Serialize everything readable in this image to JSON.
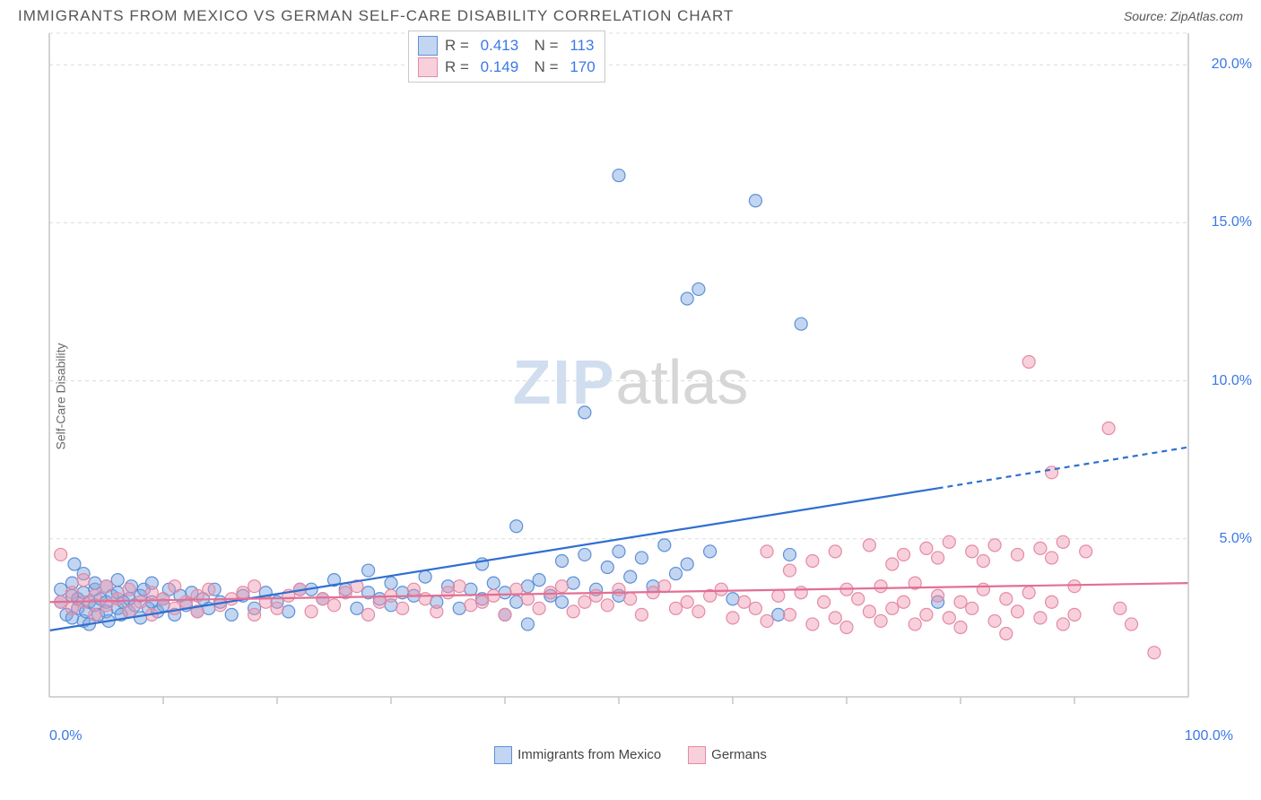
{
  "header": {
    "title": "IMMIGRANTS FROM MEXICO VS GERMAN SELF-CARE DISABILITY CORRELATION CHART",
    "source_prefix": "Source: ",
    "source_name": "ZipAtlas.com"
  },
  "y_axis_label": "Self-Care Disability",
  "watermark": {
    "left": "ZIP",
    "right": "atlas"
  },
  "chart": {
    "type": "scatter",
    "xlim": [
      0,
      100
    ],
    "ylim": [
      0,
      21
    ],
    "y_ticks": [
      5.0,
      10.0,
      15.0,
      20.0
    ],
    "y_tick_labels": [
      "5.0%",
      "10.0%",
      "15.0%",
      "20.0%"
    ],
    "x_minor_ticks": [
      10,
      20,
      30,
      40,
      50,
      60,
      70,
      80,
      90
    ],
    "x_end_labels": [
      "0.0%",
      "100.0%"
    ],
    "grid_color": "#dcdcdc",
    "axis_color": "#c5c5c5",
    "background_color": "#ffffff",
    "marker_radius": 7,
    "series": [
      {
        "key": "mexico",
        "label": "Immigrants from Mexico",
        "fill": "rgba(120,165,225,0.45)",
        "stroke": "#5e8fd6",
        "line_color": "#2f6fd0",
        "R": "0.413",
        "N": "113",
        "trend": {
          "x1": 0,
          "y1": 2.1,
          "x2": 78,
          "y2": 6.6,
          "ext_x2": 100,
          "ext_y2": 7.9,
          "dash_from": 78
        },
        "points": [
          [
            1,
            3.0
          ],
          [
            1,
            3.4
          ],
          [
            1.5,
            2.6
          ],
          [
            2,
            3.2
          ],
          [
            2,
            2.5
          ],
          [
            2,
            3.6
          ],
          [
            2.2,
            4.2
          ],
          [
            2.5,
            2.8
          ],
          [
            2.5,
            3.1
          ],
          [
            3,
            2.4
          ],
          [
            3,
            3.3
          ],
          [
            3,
            3.9
          ],
          [
            3.2,
            2.7
          ],
          [
            3.5,
            3.0
          ],
          [
            3.5,
            2.3
          ],
          [
            4,
            3.4
          ],
          [
            4,
            2.9
          ],
          [
            4,
            3.6
          ],
          [
            4.3,
            2.6
          ],
          [
            4.5,
            3.1
          ],
          [
            5,
            3.0
          ],
          [
            5,
            2.7
          ],
          [
            5,
            3.5
          ],
          [
            5.2,
            2.4
          ],
          [
            5.5,
            3.2
          ],
          [
            6,
            2.8
          ],
          [
            6,
            3.3
          ],
          [
            6,
            3.7
          ],
          [
            6.3,
            2.6
          ],
          [
            6.5,
            3.0
          ],
          [
            7,
            3.1
          ],
          [
            7,
            2.7
          ],
          [
            7.2,
            3.5
          ],
          [
            7.5,
            2.9
          ],
          [
            8,
            3.2
          ],
          [
            8,
            2.5
          ],
          [
            8.3,
            3.4
          ],
          [
            8.7,
            2.8
          ],
          [
            9,
            3.0
          ],
          [
            9,
            3.6
          ],
          [
            9.5,
            2.7
          ],
          [
            10,
            3.1
          ],
          [
            10,
            2.9
          ],
          [
            10.5,
            3.4
          ],
          [
            11,
            2.6
          ],
          [
            11.5,
            3.2
          ],
          [
            12,
            2.9
          ],
          [
            12.5,
            3.3
          ],
          [
            13,
            2.7
          ],
          [
            13.5,
            3.1
          ],
          [
            14,
            2.8
          ],
          [
            14.5,
            3.4
          ],
          [
            15,
            3.0
          ],
          [
            16,
            2.6
          ],
          [
            17,
            3.2
          ],
          [
            18,
            2.8
          ],
          [
            19,
            3.3
          ],
          [
            20,
            3.0
          ],
          [
            21,
            2.7
          ],
          [
            22,
            3.4
          ],
          [
            23,
            3.4
          ],
          [
            24,
            3.1
          ],
          [
            25,
            3.7
          ],
          [
            26,
            3.4
          ],
          [
            27,
            2.8
          ],
          [
            28,
            3.3
          ],
          [
            28,
            4.0
          ],
          [
            29,
            3.1
          ],
          [
            30,
            3.6
          ],
          [
            30,
            2.9
          ],
          [
            31,
            3.3
          ],
          [
            32,
            3.2
          ],
          [
            33,
            3.8
          ],
          [
            34,
            3.0
          ],
          [
            35,
            3.5
          ],
          [
            36,
            2.8
          ],
          [
            37,
            3.4
          ],
          [
            38,
            3.1
          ],
          [
            38,
            4.2
          ],
          [
            39,
            3.6
          ],
          [
            40,
            2.6
          ],
          [
            40,
            3.3
          ],
          [
            41,
            3.0
          ],
          [
            41,
            5.4
          ],
          [
            42,
            2.3
          ],
          [
            42,
            3.5
          ],
          [
            43,
            3.7
          ],
          [
            44,
            3.2
          ],
          [
            45,
            4.3
          ],
          [
            45,
            3.0
          ],
          [
            46,
            3.6
          ],
          [
            47,
            4.5
          ],
          [
            47,
            9.0
          ],
          [
            48,
            3.4
          ],
          [
            49,
            4.1
          ],
          [
            50,
            4.6
          ],
          [
            50,
            3.2
          ],
          [
            50,
            16.5
          ],
          [
            51,
            3.8
          ],
          [
            52,
            4.4
          ],
          [
            53,
            3.5
          ],
          [
            54,
            4.8
          ],
          [
            55,
            3.9
          ],
          [
            56,
            12.6
          ],
          [
            56,
            4.2
          ],
          [
            57,
            12.9
          ],
          [
            58,
            4.6
          ],
          [
            60,
            3.1
          ],
          [
            62,
            15.7
          ],
          [
            64,
            2.6
          ],
          [
            65,
            4.5
          ],
          [
            66,
            11.8
          ],
          [
            78,
            3.0
          ]
        ]
      },
      {
        "key": "germans",
        "label": "Germans",
        "fill": "rgba(240,150,175,0.45)",
        "stroke": "#e48aa5",
        "line_color": "#e36f93",
        "R": "0.149",
        "N": "170",
        "trend": {
          "x1": 0,
          "y1": 3.0,
          "x2": 100,
          "y2": 3.6
        },
        "points": [
          [
            1,
            4.5
          ],
          [
            1,
            3.0
          ],
          [
            2,
            3.3
          ],
          [
            2,
            2.8
          ],
          [
            3,
            3.7
          ],
          [
            3,
            3.0
          ],
          [
            4,
            2.6
          ],
          [
            4,
            3.2
          ],
          [
            5,
            3.5
          ],
          [
            5,
            2.9
          ],
          [
            6,
            3.1
          ],
          [
            7,
            2.7
          ],
          [
            7,
            3.4
          ],
          [
            8,
            3.0
          ],
          [
            9,
            2.6
          ],
          [
            9,
            3.3
          ],
          [
            10,
            3.1
          ],
          [
            11,
            2.8
          ],
          [
            11,
            3.5
          ],
          [
            12,
            3.0
          ],
          [
            13,
            2.7
          ],
          [
            13,
            3.2
          ],
          [
            14,
            3.4
          ],
          [
            15,
            2.9
          ],
          [
            16,
            3.1
          ],
          [
            17,
            3.3
          ],
          [
            18,
            2.6
          ],
          [
            18,
            3.5
          ],
          [
            19,
            3.0
          ],
          [
            20,
            2.8
          ],
          [
            21,
            3.2
          ],
          [
            22,
            3.4
          ],
          [
            23,
            2.7
          ],
          [
            24,
            3.1
          ],
          [
            25,
            2.9
          ],
          [
            26,
            3.3
          ],
          [
            27,
            3.5
          ],
          [
            28,
            2.6
          ],
          [
            29,
            3.0
          ],
          [
            30,
            3.2
          ],
          [
            31,
            2.8
          ],
          [
            32,
            3.4
          ],
          [
            33,
            3.1
          ],
          [
            34,
            2.7
          ],
          [
            35,
            3.3
          ],
          [
            36,
            3.5
          ],
          [
            37,
            2.9
          ],
          [
            38,
            3.0
          ],
          [
            39,
            3.2
          ],
          [
            40,
            2.6
          ],
          [
            41,
            3.4
          ],
          [
            42,
            3.1
          ],
          [
            43,
            2.8
          ],
          [
            44,
            3.3
          ],
          [
            45,
            3.5
          ],
          [
            46,
            2.7
          ],
          [
            47,
            3.0
          ],
          [
            48,
            3.2
          ],
          [
            49,
            2.9
          ],
          [
            50,
            3.4
          ],
          [
            51,
            3.1
          ],
          [
            52,
            2.6
          ],
          [
            53,
            3.3
          ],
          [
            54,
            3.5
          ],
          [
            55,
            2.8
          ],
          [
            56,
            3.0
          ],
          [
            57,
            2.7
          ],
          [
            58,
            3.2
          ],
          [
            59,
            3.4
          ],
          [
            60,
            2.5
          ],
          [
            61,
            3.0
          ],
          [
            62,
            2.8
          ],
          [
            63,
            4.6
          ],
          [
            63,
            2.4
          ],
          [
            64,
            3.2
          ],
          [
            65,
            2.6
          ],
          [
            65,
            4.0
          ],
          [
            66,
            3.3
          ],
          [
            67,
            2.3
          ],
          [
            67,
            4.3
          ],
          [
            68,
            3.0
          ],
          [
            69,
            2.5
          ],
          [
            69,
            4.6
          ],
          [
            70,
            3.4
          ],
          [
            70,
            2.2
          ],
          [
            71,
            3.1
          ],
          [
            72,
            2.7
          ],
          [
            72,
            4.8
          ],
          [
            73,
            3.5
          ],
          [
            73,
            2.4
          ],
          [
            74,
            4.2
          ],
          [
            74,
            2.8
          ],
          [
            75,
            3.0
          ],
          [
            75,
            4.5
          ],
          [
            76,
            2.3
          ],
          [
            76,
            3.6
          ],
          [
            77,
            4.7
          ],
          [
            77,
            2.6
          ],
          [
            78,
            3.2
          ],
          [
            78,
            4.4
          ],
          [
            79,
            2.5
          ],
          [
            79,
            4.9
          ],
          [
            80,
            3.0
          ],
          [
            80,
            2.2
          ],
          [
            81,
            4.6
          ],
          [
            81,
            2.8
          ],
          [
            82,
            3.4
          ],
          [
            82,
            4.3
          ],
          [
            83,
            2.4
          ],
          [
            83,
            4.8
          ],
          [
            84,
            3.1
          ],
          [
            84,
            2.0
          ],
          [
            85,
            4.5
          ],
          [
            85,
            2.7
          ],
          [
            86,
            10.6
          ],
          [
            86,
            3.3
          ],
          [
            87,
            4.7
          ],
          [
            87,
            2.5
          ],
          [
            88,
            3.0
          ],
          [
            88,
            4.4
          ],
          [
            88,
            7.1
          ],
          [
            89,
            2.3
          ],
          [
            89,
            4.9
          ],
          [
            90,
            3.5
          ],
          [
            90,
            2.6
          ],
          [
            91,
            4.6
          ],
          [
            93,
            8.5
          ],
          [
            94,
            2.8
          ],
          [
            95,
            2.3
          ],
          [
            97,
            1.4
          ]
        ]
      }
    ]
  },
  "legend": {
    "items": [
      {
        "key": "mexico",
        "label": "Immigrants from Mexico"
      },
      {
        "key": "germans",
        "label": "Germans"
      }
    ]
  }
}
